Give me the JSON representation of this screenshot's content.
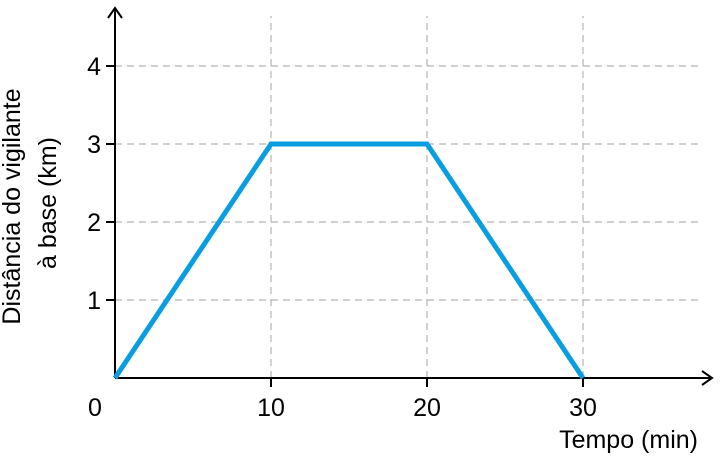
{
  "chart_data": {
    "type": "line",
    "title": "",
    "xlabel": "Tempo (min)",
    "ylabel_lines": [
      "Distância do vigilante",
      "à base (km)"
    ],
    "x": [
      0,
      10,
      20,
      30
    ],
    "series": [
      {
        "values": [
          0,
          3,
          3,
          0
        ],
        "color": "#0a9ee0"
      }
    ],
    "xticks": [
      0,
      10,
      20,
      30
    ],
    "xtick_labels": [
      "0",
      "10",
      "20",
      "30"
    ],
    "yticks": [
      1,
      2,
      3,
      4
    ],
    "ytick_labels": [
      "1",
      "2",
      "3",
      "4"
    ],
    "xlim": [
      0,
      38
    ],
    "ylim": [
      0,
      4.8
    ],
    "grid": true,
    "grid_style": "dashed",
    "legend": "none"
  }
}
